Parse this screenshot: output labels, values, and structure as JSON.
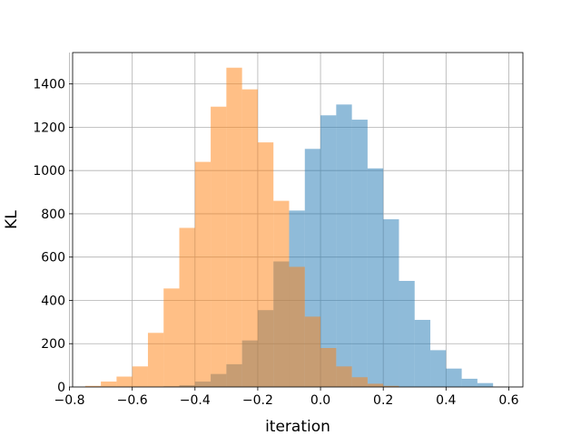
{
  "chart_data": {
    "type": "bar",
    "subtype": "histogram",
    "xlabel": "iteration",
    "ylabel": "KL",
    "xlim": [
      -0.79,
      0.645
    ],
    "ylim": [
      0,
      1545
    ],
    "grid": true,
    "xticks": [
      -0.8,
      -0.6,
      -0.4,
      -0.2,
      0.0,
      0.2,
      0.4,
      0.6
    ],
    "xtick_labels": [
      "−0.8",
      "−0.6",
      "−0.4",
      "−0.2",
      "0.0",
      "0.2",
      "0.4",
      "0.6"
    ],
    "yticks": [
      0,
      200,
      400,
      600,
      800,
      1000,
      1200,
      1400
    ],
    "ytick_labels": [
      "0",
      "200",
      "400",
      "600",
      "800",
      "1000",
      "1200",
      "1400"
    ],
    "series": [
      {
        "color": "#1f77b4",
        "opacity": 0.5,
        "bins": [
          {
            "x0": -0.5,
            "x1": -0.45,
            "count": 3
          },
          {
            "x0": -0.45,
            "x1": -0.4,
            "count": 8
          },
          {
            "x0": -0.4,
            "x1": -0.35,
            "count": 25
          },
          {
            "x0": -0.35,
            "x1": -0.3,
            "count": 60
          },
          {
            "x0": -0.3,
            "x1": -0.25,
            "count": 105
          },
          {
            "x0": -0.25,
            "x1": -0.2,
            "count": 215
          },
          {
            "x0": -0.2,
            "x1": -0.15,
            "count": 355
          },
          {
            "x0": -0.15,
            "x1": -0.1,
            "count": 580
          },
          {
            "x0": -0.1,
            "x1": -0.05,
            "count": 815
          },
          {
            "x0": -0.05,
            "x1": 0.0,
            "count": 1100
          },
          {
            "x0": 0.0,
            "x1": 0.05,
            "count": 1255
          },
          {
            "x0": 0.05,
            "x1": 0.1,
            "count": 1305
          },
          {
            "x0": 0.1,
            "x1": 0.15,
            "count": 1235
          },
          {
            "x0": 0.15,
            "x1": 0.2,
            "count": 1010
          },
          {
            "x0": 0.2,
            "x1": 0.25,
            "count": 775
          },
          {
            "x0": 0.25,
            "x1": 0.3,
            "count": 490
          },
          {
            "x0": 0.3,
            "x1": 0.35,
            "count": 310
          },
          {
            "x0": 0.35,
            "x1": 0.4,
            "count": 170
          },
          {
            "x0": 0.4,
            "x1": 0.45,
            "count": 85
          },
          {
            "x0": 0.45,
            "x1": 0.5,
            "count": 38
          },
          {
            "x0": 0.5,
            "x1": 0.55,
            "count": 18
          }
        ]
      },
      {
        "color": "#ff7f0e",
        "opacity": 0.5,
        "bins": [
          {
            "x0": -0.75,
            "x1": -0.7,
            "count": 5
          },
          {
            "x0": -0.7,
            "x1": -0.65,
            "count": 25
          },
          {
            "x0": -0.65,
            "x1": -0.6,
            "count": 48
          },
          {
            "x0": -0.6,
            "x1": -0.55,
            "count": 95
          },
          {
            "x0": -0.55,
            "x1": -0.5,
            "count": 250
          },
          {
            "x0": -0.5,
            "x1": -0.45,
            "count": 455
          },
          {
            "x0": -0.45,
            "x1": -0.4,
            "count": 735
          },
          {
            "x0": -0.4,
            "x1": -0.35,
            "count": 1040
          },
          {
            "x0": -0.35,
            "x1": -0.3,
            "count": 1295
          },
          {
            "x0": -0.3,
            "x1": -0.25,
            "count": 1475
          },
          {
            "x0": -0.25,
            "x1": -0.2,
            "count": 1375
          },
          {
            "x0": -0.2,
            "x1": -0.15,
            "count": 1130
          },
          {
            "x0": -0.15,
            "x1": -0.1,
            "count": 860
          },
          {
            "x0": -0.1,
            "x1": -0.05,
            "count": 555
          },
          {
            "x0": -0.05,
            "x1": 0.0,
            "count": 325
          },
          {
            "x0": 0.0,
            "x1": 0.05,
            "count": 180
          },
          {
            "x0": 0.05,
            "x1": 0.1,
            "count": 95
          },
          {
            "x0": 0.1,
            "x1": 0.15,
            "count": 45
          },
          {
            "x0": 0.15,
            "x1": 0.2,
            "count": 15
          },
          {
            "x0": 0.2,
            "x1": 0.25,
            "count": 5
          }
        ]
      }
    ]
  }
}
